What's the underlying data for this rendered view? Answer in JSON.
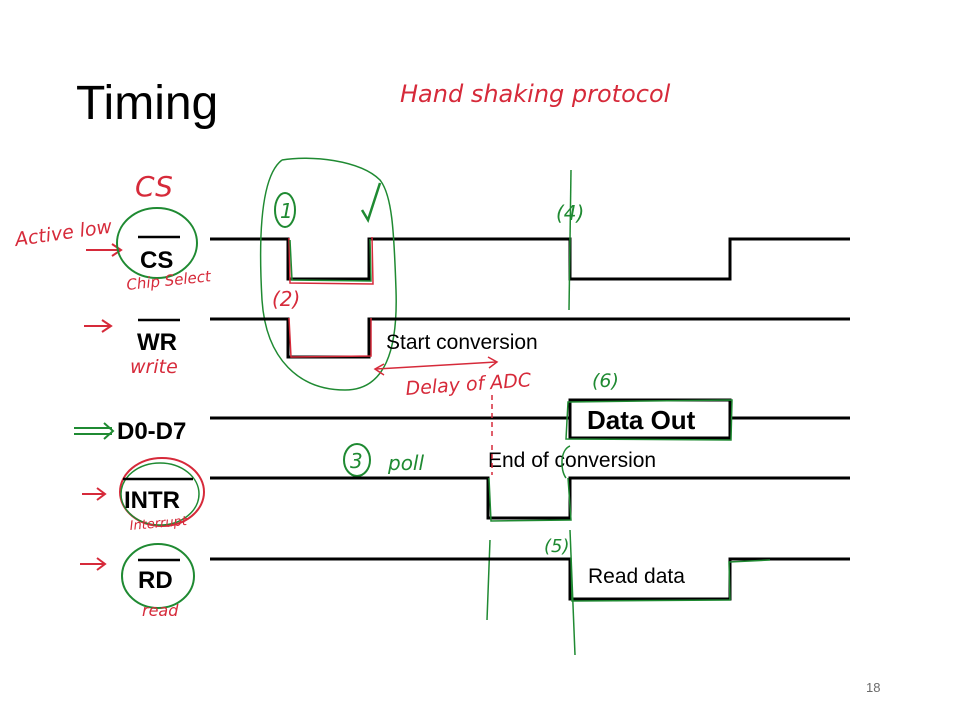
{
  "slide": {
    "title": "Timing",
    "page_number": "18"
  },
  "signals": {
    "cs": "CS",
    "wr": "WR",
    "data": "D0-D7",
    "intr": "INTR",
    "rd": "RD"
  },
  "labels": {
    "start_conversion": "Start conversion",
    "data_out": "Data Out",
    "end_of_conversion": "End of conversion",
    "read_data": "Read data"
  },
  "annotations": {
    "heading": "Hand shaking protocol",
    "cs_big": "CS",
    "active_low": "Active low",
    "chip_select": "Chip Select",
    "write": "write",
    "delay": "Delay of ADC",
    "interrupt": "Interrupt",
    "read": "read",
    "poll": "poll",
    "step1": "1",
    "step2": "(2)",
    "step3": "3",
    "step4": "(4)",
    "step5": "(5)",
    "step6": "(6)",
    "colors": {
      "red": "#d62a3a",
      "green": "#1f8a32",
      "black": "#000000"
    }
  }
}
